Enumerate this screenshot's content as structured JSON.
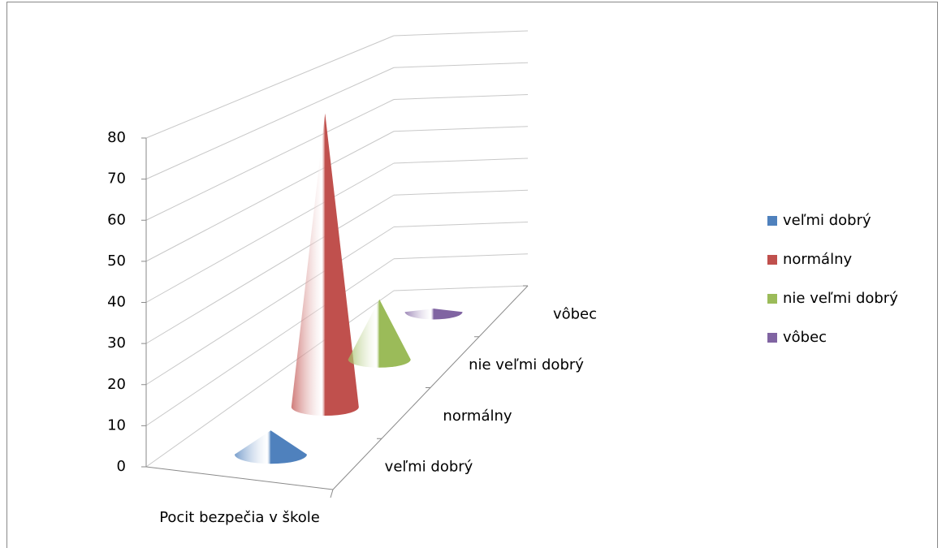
{
  "chart_data": {
    "type": "cone3d",
    "x_label": "Pocit bezpečia v škole",
    "categories": [
      "veľmi dobrý",
      "normálny",
      "nie veľmi dobrý",
      "vôbec"
    ],
    "values": [
      6,
      78,
      17,
      1
    ],
    "colors": [
      "#4f81bd",
      "#c0504d",
      "#9bbb59",
      "#8064a2"
    ],
    "ylim": [
      0,
      80
    ],
    "yticks": [
      0,
      10,
      20,
      30,
      40,
      50,
      60,
      70,
      80
    ],
    "grid": true,
    "legend": "right"
  }
}
